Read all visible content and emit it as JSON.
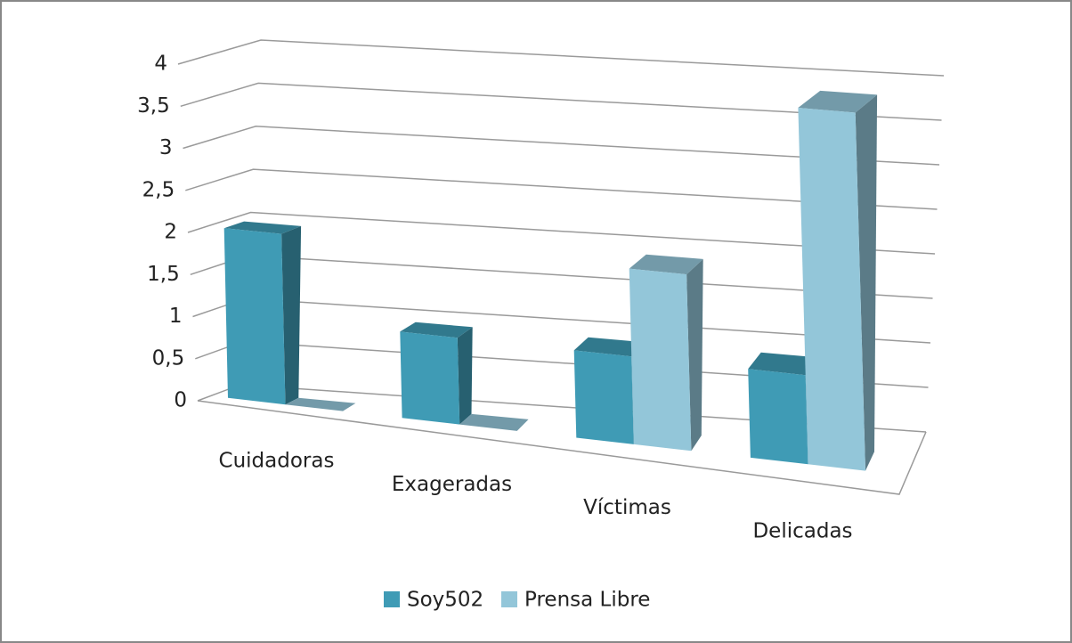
{
  "chart_data": {
    "type": "bar3d",
    "categories": [
      "Cuidadoras",
      "Exageradas",
      "Víctimas",
      "Delicadas"
    ],
    "series": [
      {
        "name": "Soy502",
        "color": "#3f9bb5",
        "values": [
          2,
          1,
          1,
          1
        ]
      },
      {
        "name": "Prensa Libre",
        "color": "#93c6d9",
        "values": [
          0,
          0,
          2,
          4
        ]
      }
    ],
    "ylim": [
      0,
      4
    ],
    "yticks": [
      0,
      {
        "value": 0.5,
        "label": "0,5"
      },
      1,
      {
        "value": 1.5,
        "label": "1,5"
      },
      2,
      {
        "value": 2.5,
        "label": "2,5"
      },
      3,
      {
        "value": 3.5,
        "label": "3,5"
      },
      4
    ],
    "grid": true,
    "legend": "bottom"
  }
}
